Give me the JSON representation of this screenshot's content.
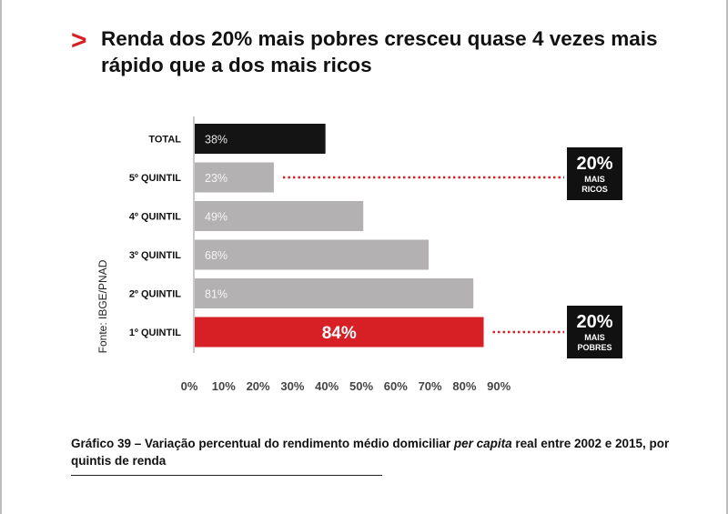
{
  "header": {
    "chevron": ">",
    "title": "Renda dos 20% mais pobres cresceu quase 4 vezes mais rápido que a dos mais ricos"
  },
  "chart_data": {
    "type": "bar",
    "orientation": "horizontal",
    "categories": [
      "TOTAL",
      "5º QUINTIL",
      "4º QUINTIL",
      "3º QUINTIL",
      "2º QUINTIL",
      "1º QUINTIL"
    ],
    "values": [
      38,
      23,
      49,
      68,
      81,
      84
    ],
    "data_labels": [
      "38%",
      "23%",
      "49%",
      "68%",
      "81%",
      "84%"
    ],
    "bar_colors": [
      "#141414",
      "#b3b1b2",
      "#b3b1b2",
      "#b3b1b2",
      "#b3b1b2",
      "#d71f26"
    ],
    "xlim": [
      0,
      90
    ],
    "xticks": [
      "0%",
      "10%",
      "20%",
      "30%",
      "40%",
      "50%",
      "60%",
      "70%",
      "80%",
      "90%"
    ],
    "source_label": "Fonte: IBGE/PNAD",
    "grid": false,
    "annotations": [
      {
        "category_index": 1,
        "value": "20%",
        "lines": [
          "MAIS",
          "RICOS"
        ]
      },
      {
        "category_index": 5,
        "value": "20%",
        "lines": [
          "MAIS",
          "POBRES"
        ]
      }
    ]
  },
  "caption": {
    "prefix": "Gráfico 39 – Variação percentual do rendimento médio domiciliar ",
    "italic": "per capita",
    "suffix": " real entre 2002 e 2015, por quintis de renda"
  }
}
